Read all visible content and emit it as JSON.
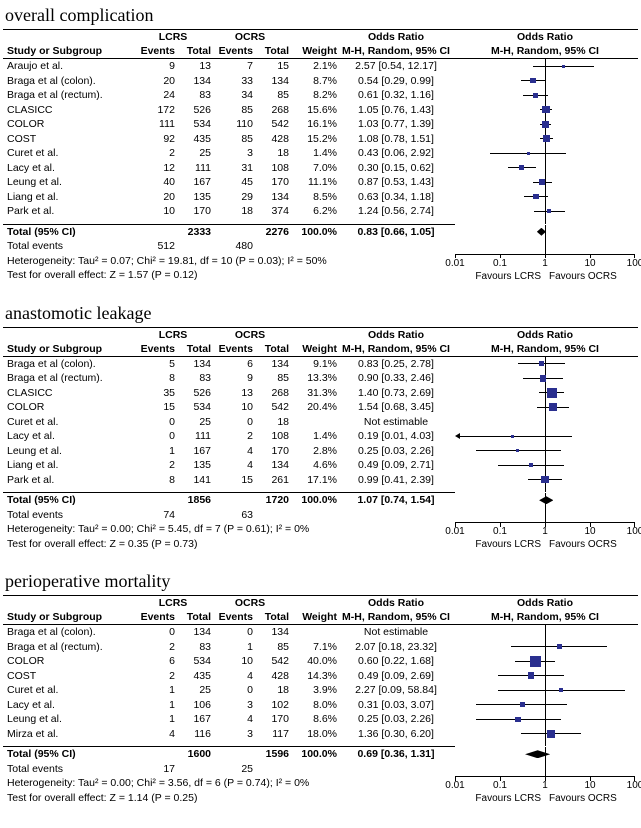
{
  "figure": {
    "headers": {
      "study": "Study or Subgroup",
      "events": "Events",
      "total": "Total",
      "weight": "Weight",
      "group_left": "LCRS",
      "group_right": "OCRS",
      "or_title": "Odds Ratio",
      "or_subtitle": "M-H, Random, 95% CI",
      "total_label": "Total (95% CI)",
      "total_events_label": "Total events",
      "not_estimable": "Not estimable"
    },
    "axis": {
      "scale": "log",
      "min": 0.01,
      "max": 100,
      "ticks": [
        0.01,
        0.1,
        1,
        10,
        100
      ],
      "tick_labels": [
        "0.01",
        "0.1",
        "1",
        "10",
        "100"
      ],
      "favours_left": "Favours LCRS",
      "favours_right": "Favours OCRS"
    },
    "colors": {
      "marker": "#2a2f8f",
      "line": "#000000",
      "diamond": "#000000",
      "text": "#000000",
      "background": "#ffffff"
    }
  },
  "chart_data": [
    {
      "type": "forest",
      "title": "overall complication",
      "x_scale": "log",
      "x_range": [
        0.01,
        100
      ],
      "studies": [
        {
          "name": "Araujo et al.",
          "e1": 9,
          "t1": 13,
          "e2": 7,
          "t2": 15,
          "weight": "2.1%",
          "ci_text": "2.57 [0.54, 12.17]",
          "or": 2.57,
          "lo": 0.54,
          "hi": 12.17
        },
        {
          "name": "Braga et al (colon).",
          "e1": 20,
          "t1": 134,
          "e2": 33,
          "t2": 134,
          "weight": "8.7%",
          "ci_text": "0.54 [0.29, 0.99]",
          "or": 0.54,
          "lo": 0.29,
          "hi": 0.99
        },
        {
          "name": "Braga et al (rectum).",
          "e1": 24,
          "t1": 83,
          "e2": 34,
          "t2": 85,
          "weight": "8.2%",
          "ci_text": "0.61 [0.32, 1.16]",
          "or": 0.61,
          "lo": 0.32,
          "hi": 1.16
        },
        {
          "name": "CLASICC",
          "e1": 172,
          "t1": 526,
          "e2": 85,
          "t2": 268,
          "weight": "15.6%",
          "ci_text": "1.05 [0.76, 1.43]",
          "or": 1.05,
          "lo": 0.76,
          "hi": 1.43
        },
        {
          "name": "COLOR",
          "e1": 111,
          "t1": 534,
          "e2": 110,
          "t2": 542,
          "weight": "16.1%",
          "ci_text": "1.03 [0.77, 1.39]",
          "or": 1.03,
          "lo": 0.77,
          "hi": 1.39
        },
        {
          "name": "COST",
          "e1": 92,
          "t1": 435,
          "e2": 85,
          "t2": 428,
          "weight": "15.2%",
          "ci_text": "1.08 [0.78, 1.51]",
          "or": 1.08,
          "lo": 0.78,
          "hi": 1.51
        },
        {
          "name": "Curet et al.",
          "e1": 2,
          "t1": 25,
          "e2": 3,
          "t2": 18,
          "weight": "1.4%",
          "ci_text": "0.43 [0.06, 2.92]",
          "or": 0.43,
          "lo": 0.06,
          "hi": 2.92
        },
        {
          "name": "Lacy et al.",
          "e1": 12,
          "t1": 111,
          "e2": 31,
          "t2": 108,
          "weight": "7.0%",
          "ci_text": "0.30 [0.15, 0.62]",
          "or": 0.3,
          "lo": 0.15,
          "hi": 0.62
        },
        {
          "name": "Leung et al.",
          "e1": 40,
          "t1": 167,
          "e2": 45,
          "t2": 170,
          "weight": "11.1%",
          "ci_text": "0.87 [0.53, 1.43]",
          "or": 0.87,
          "lo": 0.53,
          "hi": 1.43
        },
        {
          "name": "Liang et al.",
          "e1": 20,
          "t1": 135,
          "e2": 29,
          "t2": 134,
          "weight": "8.5%",
          "ci_text": "0.63 [0.34, 1.18]",
          "or": 0.63,
          "lo": 0.34,
          "hi": 1.18
        },
        {
          "name": "Park et al.",
          "e1": 10,
          "t1": 170,
          "e2": 18,
          "t2": 374,
          "weight": "6.2%",
          "ci_text": "1.24 [0.56, 2.74]",
          "or": 1.24,
          "lo": 0.56,
          "hi": 2.74
        }
      ],
      "total": {
        "t1": 2333,
        "t2": 2276,
        "weight": "100.0%",
        "ci_text": "0.83 [0.66, 1.05]",
        "or": 0.83,
        "lo": 0.66,
        "hi": 1.05
      },
      "total_events": {
        "e1": 512,
        "e2": 480
      },
      "heterogeneity": "Heterogeneity: Tau² = 0.07; Chi² = 19.81, df = 10 (P = 0.03); I² = 50%",
      "overall_effect": "Test for overall effect: Z = 1.57 (P = 0.12)"
    },
    {
      "type": "forest",
      "title": "anastomotic leakage",
      "x_scale": "log",
      "x_range": [
        0.01,
        100
      ],
      "studies": [
        {
          "name": "Braga et al (colon).",
          "e1": 5,
          "t1": 134,
          "e2": 6,
          "t2": 134,
          "weight": "9.1%",
          "ci_text": "0.83 [0.25, 2.78]",
          "or": 0.83,
          "lo": 0.25,
          "hi": 2.78
        },
        {
          "name": "Braga et al (rectum).",
          "e1": 8,
          "t1": 83,
          "e2": 9,
          "t2": 85,
          "weight": "13.3%",
          "ci_text": "0.90 [0.33, 2.46]",
          "or": 0.9,
          "lo": 0.33,
          "hi": 2.46
        },
        {
          "name": "CLASICC",
          "e1": 35,
          "t1": 526,
          "e2": 13,
          "t2": 268,
          "weight": "31.3%",
          "ci_text": "1.40 [0.73, 2.69]",
          "or": 1.4,
          "lo": 0.73,
          "hi": 2.69
        },
        {
          "name": "COLOR",
          "e1": 15,
          "t1": 534,
          "e2": 10,
          "t2": 542,
          "weight": "20.4%",
          "ci_text": "1.54 [0.68, 3.45]",
          "or": 1.54,
          "lo": 0.68,
          "hi": 3.45
        },
        {
          "name": "Curet et al.",
          "e1": 0,
          "t1": 25,
          "e2": 0,
          "t2": 18,
          "weight": "",
          "ci_text": "Not estimable",
          "or": null,
          "lo": null,
          "hi": null
        },
        {
          "name": "Lacy et al.",
          "e1": 0,
          "t1": 111,
          "e2": 2,
          "t2": 108,
          "weight": "1.4%",
          "ci_text": "0.19 [0.01, 4.03]",
          "or": 0.19,
          "lo": 0.01,
          "hi": 4.03
        },
        {
          "name": "Leung et al.",
          "e1": 1,
          "t1": 167,
          "e2": 4,
          "t2": 170,
          "weight": "2.8%",
          "ci_text": "0.25 [0.03, 2.26]",
          "or": 0.25,
          "lo": 0.03,
          "hi": 2.26
        },
        {
          "name": "Liang et al.",
          "e1": 2,
          "t1": 135,
          "e2": 4,
          "t2": 134,
          "weight": "4.6%",
          "ci_text": "0.49 [0.09, 2.71]",
          "or": 0.49,
          "lo": 0.09,
          "hi": 2.71
        },
        {
          "name": "Park et al.",
          "e1": 8,
          "t1": 141,
          "e2": 15,
          "t2": 261,
          "weight": "17.1%",
          "ci_text": "0.99 [0.41, 2.39]",
          "or": 0.99,
          "lo": 0.41,
          "hi": 2.39
        }
      ],
      "total": {
        "t1": 1856,
        "t2": 1720,
        "weight": "100.0%",
        "ci_text": "1.07 [0.74, 1.54]",
        "or": 1.07,
        "lo": 0.74,
        "hi": 1.54
      },
      "total_events": {
        "e1": 74,
        "e2": 63
      },
      "heterogeneity": "Heterogeneity: Tau² = 0.00; Chi² = 5.45, df = 7 (P = 0.61); I² = 0%",
      "overall_effect": "Test for overall effect: Z = 0.35 (P = 0.73)"
    },
    {
      "type": "forest",
      "title": "perioperative mortality",
      "x_scale": "log",
      "x_range": [
        0.01,
        100
      ],
      "studies": [
        {
          "name": "Braga et al (colon).",
          "e1": 0,
          "t1": 134,
          "e2": 0,
          "t2": 134,
          "weight": "",
          "ci_text": "Not estimable",
          "or": null,
          "lo": null,
          "hi": null
        },
        {
          "name": "Braga et al (rectum).",
          "e1": 2,
          "t1": 83,
          "e2": 1,
          "t2": 85,
          "weight": "7.1%",
          "ci_text": "2.07 [0.18, 23.32]",
          "or": 2.07,
          "lo": 0.18,
          "hi": 23.32
        },
        {
          "name": "COLOR",
          "e1": 6,
          "t1": 534,
          "e2": 10,
          "t2": 542,
          "weight": "40.0%",
          "ci_text": "0.60 [0.22, 1.68]",
          "or": 0.6,
          "lo": 0.22,
          "hi": 1.68
        },
        {
          "name": "COST",
          "e1": 2,
          "t1": 435,
          "e2": 4,
          "t2": 428,
          "weight": "14.3%",
          "ci_text": "0.49 [0.09, 2.69]",
          "or": 0.49,
          "lo": 0.09,
          "hi": 2.69
        },
        {
          "name": "Curet et al.",
          "e1": 1,
          "t1": 25,
          "e2": 0,
          "t2": 18,
          "weight": "3.9%",
          "ci_text": "2.27 [0.09, 58.84]",
          "or": 2.27,
          "lo": 0.09,
          "hi": 58.84
        },
        {
          "name": "Lacy et al.",
          "e1": 1,
          "t1": 106,
          "e2": 3,
          "t2": 102,
          "weight": "8.0%",
          "ci_text": "0.31 [0.03, 3.07]",
          "or": 0.31,
          "lo": 0.03,
          "hi": 3.07
        },
        {
          "name": "Leung et al.",
          "e1": 1,
          "t1": 167,
          "e2": 4,
          "t2": 170,
          "weight": "8.6%",
          "ci_text": "0.25 [0.03, 2.26]",
          "or": 0.25,
          "lo": 0.03,
          "hi": 2.26
        },
        {
          "name": "Mirza et al.",
          "e1": 4,
          "t1": 116,
          "e2": 3,
          "t2": 117,
          "weight": "18.0%",
          "ci_text": "1.36 [0.30, 6.20]",
          "or": 1.36,
          "lo": 0.3,
          "hi": 6.2
        }
      ],
      "total": {
        "t1": 1600,
        "t2": 1596,
        "weight": "100.0%",
        "ci_text": "0.69 [0.36, 1.31]",
        "or": 0.69,
        "lo": 0.36,
        "hi": 1.31
      },
      "total_events": {
        "e1": 17,
        "e2": 25
      },
      "heterogeneity": "Heterogeneity: Tau² = 0.00; Chi² = 3.56, df = 6 (P = 0.74); I² = 0%",
      "overall_effect": "Test for overall effect: Z = 1.14 (P = 0.25)"
    }
  ]
}
